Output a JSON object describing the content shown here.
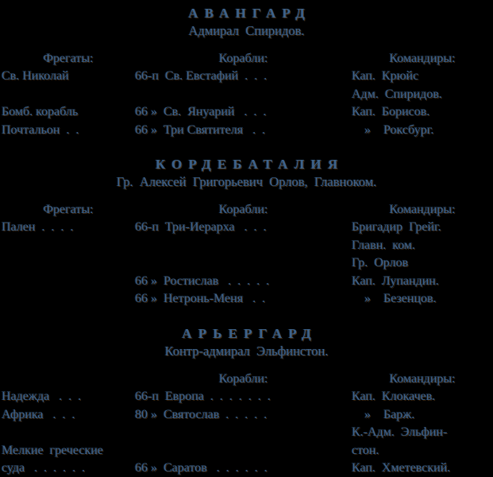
{
  "document": {
    "type": "book-page-scan",
    "colors": {
      "background": "#000000",
      "ink_blue": "#3c638c",
      "ink_amber": "#9a662c"
    },
    "sections": [
      {
        "id": "avangard",
        "title": "АВАНГАРД",
        "subtitle": "Адмирал Спиридов.",
        "columns": {
          "frigates": [
            "Фрегаты:",
            "Св. Николай",
            "",
            "Бомб. корабль",
            "Почтальон  .  ."
          ],
          "ships": [
            "Корабли:",
            "66-п  Св. Евстафий  .  .  .",
            "",
            "66 »  Св.  Януарий   .  .  .",
            "66 »  Три Святителя   .  ."
          ],
          "commanders": [
            "Командиры:",
            "Кап.  Крюйс",
            "Адм.  Спиридов.",
            "Кап.  Борисов.",
            "    »    Роксбург."
          ]
        }
      },
      {
        "id": "kordebataliya",
        "title": "КОРДЕБАТАЛИЯ",
        "subtitle": "Гр. Алексей Григорьевич Орлов, Главноком.",
        "columns": {
          "frigates": [
            "Фрегаты:",
            "Пален  .  .  .  .",
            "",
            "",
            "",
            ""
          ],
          "ships": [
            "Корабли:",
            "66-п  Три-Иерарха   .  .  .",
            "",
            "",
            "66 »  Ростислав   .  .  .  .  .",
            "66 »  Нетронь-Меня   .  ."
          ],
          "commanders": [
            "Командиры:",
            "Бригадир  Грейг.",
            "Главн.  ком.",
            "Гр.  Орлов",
            "Кап.  Лупандин.",
            "    »    Безенцов."
          ]
        }
      },
      {
        "id": "arriergard",
        "title": "АРЬЕРГАРД",
        "subtitle": "Контр-адмирал Эльфинстон.",
        "columns": {
          "frigates": [
            "",
            "Надежда   .  .  .",
            "Африка   .  .  .",
            "",
            "Мелкие  греческие",
            "суда   .  .  .  .  .  ."
          ],
          "ships": [
            "Корабли:",
            "66-п  Европа  .  .  .  .  .  .  .",
            "80 »  Святослав  .  .  .  .  .",
            "",
            "",
            "66 »  Саратов   .  .  .  .  .  ."
          ],
          "commanders": [
            "Командиры:",
            "Кап.  Клокачев.",
            "    »    Барж.",
            "К.-Адм.  Эльфин-",
            "стон.",
            "Кап.  Хметевский."
          ]
        }
      }
    ]
  }
}
